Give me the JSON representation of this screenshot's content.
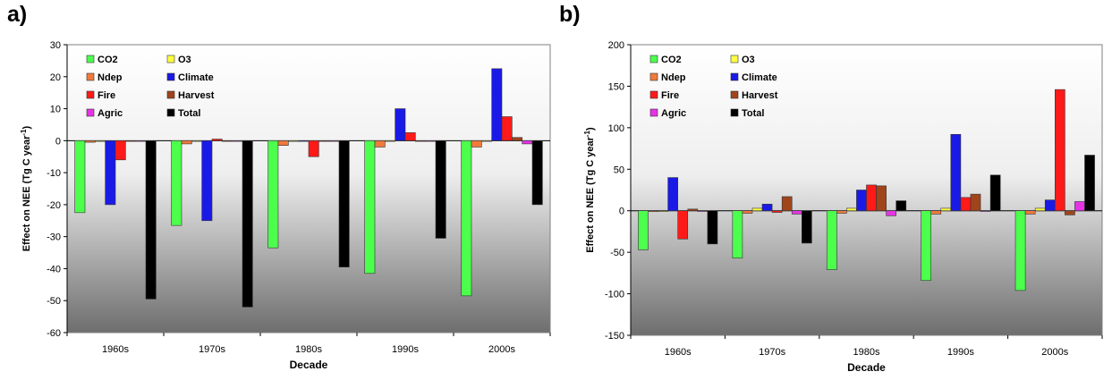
{
  "chart_data": [
    {
      "panel_label": "a)",
      "type": "bar",
      "categories": [
        "1960s",
        "1970s",
        "1980s",
        "1990s",
        "2000s"
      ],
      "xlabel": "Decade",
      "ylabel": "Effect on NEE (Tg C year-1)",
      "ylim": [
        -60,
        30
      ],
      "yticks": [
        30,
        20,
        10,
        0,
        -10,
        -20,
        -30,
        -40,
        -50,
        -60
      ],
      "grid": false,
      "legend": "top-left",
      "series": [
        {
          "name": "CO2",
          "color": "#4dff4d",
          "values": [
            -22.5,
            -26.5,
            -33.5,
            -41.5,
            -48.5
          ]
        },
        {
          "name": "Ndep",
          "color": "#f07a3c",
          "values": [
            -0.5,
            -1,
            -1.5,
            -2,
            -2
          ]
        },
        {
          "name": "O3",
          "color": "#ffff40",
          "values": [
            0,
            0,
            0,
            0,
            0
          ]
        },
        {
          "name": "Climate",
          "color": "#1a1ae6",
          "values": [
            -20,
            -25,
            0,
            10,
            22.5
          ]
        },
        {
          "name": "Fire",
          "color": "#ff1a1a",
          "values": [
            -6,
            0.5,
            -5,
            2.5,
            7.5
          ]
        },
        {
          "name": "Harvest",
          "color": "#a0441c",
          "values": [
            0,
            0,
            0,
            0,
            1
          ]
        },
        {
          "name": "Agric",
          "color": "#e633e6",
          "values": [
            0,
            0,
            0,
            0,
            -1
          ]
        },
        {
          "name": "Total",
          "color": "#000000",
          "values": [
            -49.5,
            -52,
            -39.5,
            -30.5,
            -20
          ]
        }
      ]
    },
    {
      "panel_label": "b)",
      "type": "bar",
      "categories": [
        "1960s",
        "1970s",
        "1980s",
        "1990s",
        "2000s"
      ],
      "xlabel": "Decade",
      "ylabel": "Effect on NEE (Tg C year-1)",
      "ylim": [
        -150,
        200
      ],
      "yticks": [
        200,
        150,
        100,
        50,
        0,
        -50,
        -100,
        -150
      ],
      "grid": false,
      "legend": "top-left",
      "series": [
        {
          "name": "CO2",
          "color": "#4dff4d",
          "values": [
            -47,
            -57,
            -71,
            -84,
            -96
          ]
        },
        {
          "name": "Ndep",
          "color": "#f07a3c",
          "values": [
            -1,
            -3,
            -3,
            -4,
            -4
          ]
        },
        {
          "name": "O3",
          "color": "#ffff40",
          "values": [
            0,
            3,
            3,
            3,
            3
          ]
        },
        {
          "name": "Climate",
          "color": "#1a1ae6",
          "values": [
            40,
            8,
            25,
            92,
            13
          ]
        },
        {
          "name": "Fire",
          "color": "#ff1a1a",
          "values": [
            -34,
            -2,
            31,
            16,
            146
          ]
        },
        {
          "name": "Harvest",
          "color": "#a0441c",
          "values": [
            2,
            17,
            30,
            20,
            -5
          ]
        },
        {
          "name": "Agric",
          "color": "#e633e6",
          "values": [
            0,
            -4,
            -6,
            0,
            11
          ]
        },
        {
          "name": "Total",
          "color": "#000000",
          "values": [
            -40,
            -39,
            12,
            43,
            67
          ]
        }
      ]
    }
  ]
}
